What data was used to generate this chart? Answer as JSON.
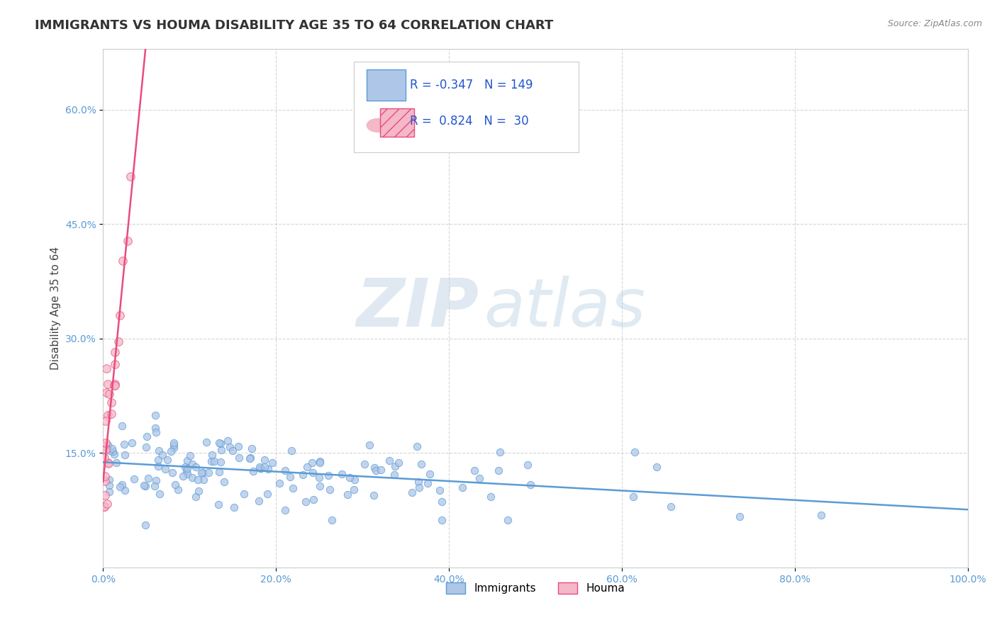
{
  "title": "IMMIGRANTS VS HOUMA DISABILITY AGE 35 TO 64 CORRELATION CHART",
  "source": "Source: ZipAtlas.com",
  "xlabel": "",
  "ylabel": "Disability Age 35 to 64",
  "xlim": [
    0.0,
    1.0
  ],
  "ylim": [
    0.0,
    0.68
  ],
  "yticks": [
    0.15,
    0.3,
    0.45,
    0.6
  ],
  "ytick_labels": [
    "15.0%",
    "30.0%",
    "45.0%",
    "60.0%"
  ],
  "xticks": [
    0.0,
    0.2,
    0.4,
    0.6,
    0.8,
    1.0
  ],
  "xtick_labels": [
    "0.0%",
    "20.0%",
    "40.0%",
    "60.0%",
    "80.0%",
    "100.0%"
  ],
  "R_immigrants": -0.347,
  "N_immigrants": 149,
  "R_houma": 0.824,
  "N_houma": 30,
  "immigrants_color": "#aec6e8",
  "houma_color": "#f4b8c8",
  "immigrants_line_color": "#5b9bd5",
  "houma_line_color": "#e84c7d",
  "watermark_zip": "ZIP",
  "watermark_atlas": "atlas",
  "background_color": "#ffffff",
  "grid_color": "#cccccc",
  "title_fontsize": 13,
  "axis_label_fontsize": 11,
  "tick_fontsize": 10,
  "legend_r_color": "#2255cc",
  "seed": 7
}
